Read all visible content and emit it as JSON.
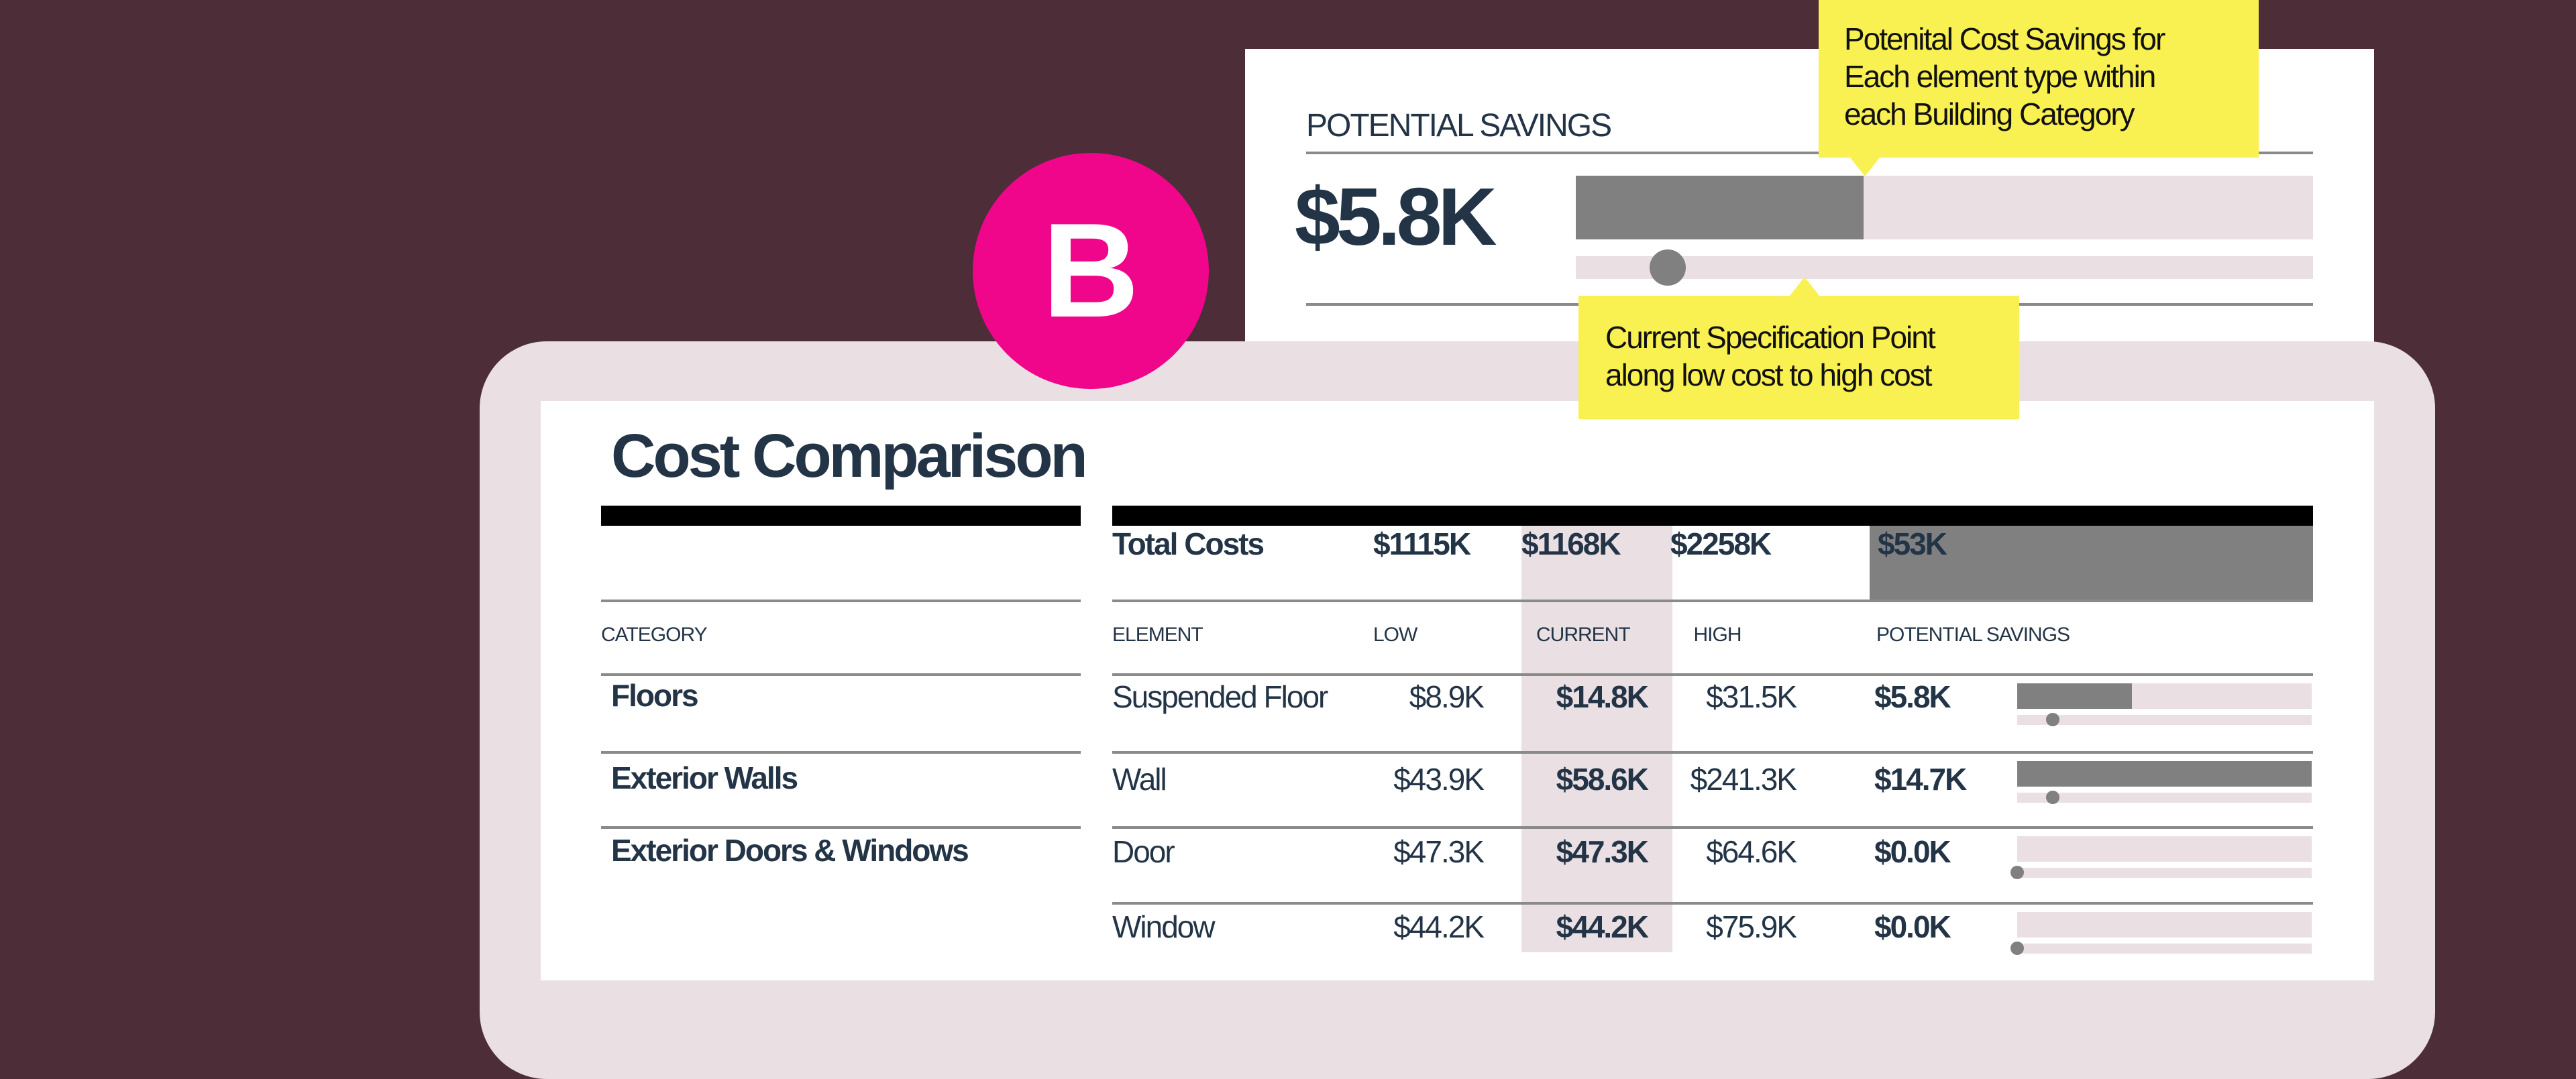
{
  "colors": {
    "background": "#4c2d38",
    "accent_badge": "#f0068a",
    "callout": "#f9f052",
    "bar_fill": "#808080",
    "bar_track": "#eadfe3",
    "text": "#233447"
  },
  "badge": {
    "letter": "B"
  },
  "potential_savings_card": {
    "title": "POTENTIAL SAVINGS",
    "value": "$5.8K",
    "savings_bar_fraction": 0.39,
    "spec_point_fraction": 0.125
  },
  "callouts": {
    "savings": "Potenital Cost Savings for Each element type within each Building Category",
    "spec_point": "Current Specification Point along low cost to high cost"
  },
  "cost_comparison": {
    "title": "Cost Comparison",
    "totals": {
      "label": "Total Costs",
      "low": "$1115K",
      "current": "$1168K",
      "high": "$2258K",
      "savings": "$53K"
    },
    "headers": {
      "category": "CATEGORY",
      "element": "ELEMENT",
      "low": "LOW",
      "current": "CURRENT",
      "high": "HIGH",
      "savings": "POTENTIAL SAVINGS"
    },
    "categories": [
      "Floors",
      "Exterior Walls",
      "Exterior Doors & Windows"
    ],
    "rows": [
      {
        "element": "Suspended Floor",
        "low": "$8.9K",
        "current": "$14.8K",
        "high": "$31.5K",
        "savings": "$5.8K",
        "savings_fraction": 0.39,
        "spec_fraction": 0.12
      },
      {
        "element": "Wall",
        "low": "$43.9K",
        "current": "$58.6K",
        "high": "$241.3K",
        "savings": "$14.7K",
        "savings_fraction": 1.0,
        "spec_fraction": 0.12
      },
      {
        "element": "Door",
        "low": "$47.3K",
        "current": "$47.3K",
        "high": "$64.6K",
        "savings": "$0.0K",
        "savings_fraction": 0,
        "spec_fraction": 0
      },
      {
        "element": "Window",
        "low": "$44.2K",
        "current": "$44.2K",
        "high": "$75.9K",
        "savings": "$0.0K",
        "savings_fraction": 0,
        "spec_fraction": 0
      }
    ]
  }
}
